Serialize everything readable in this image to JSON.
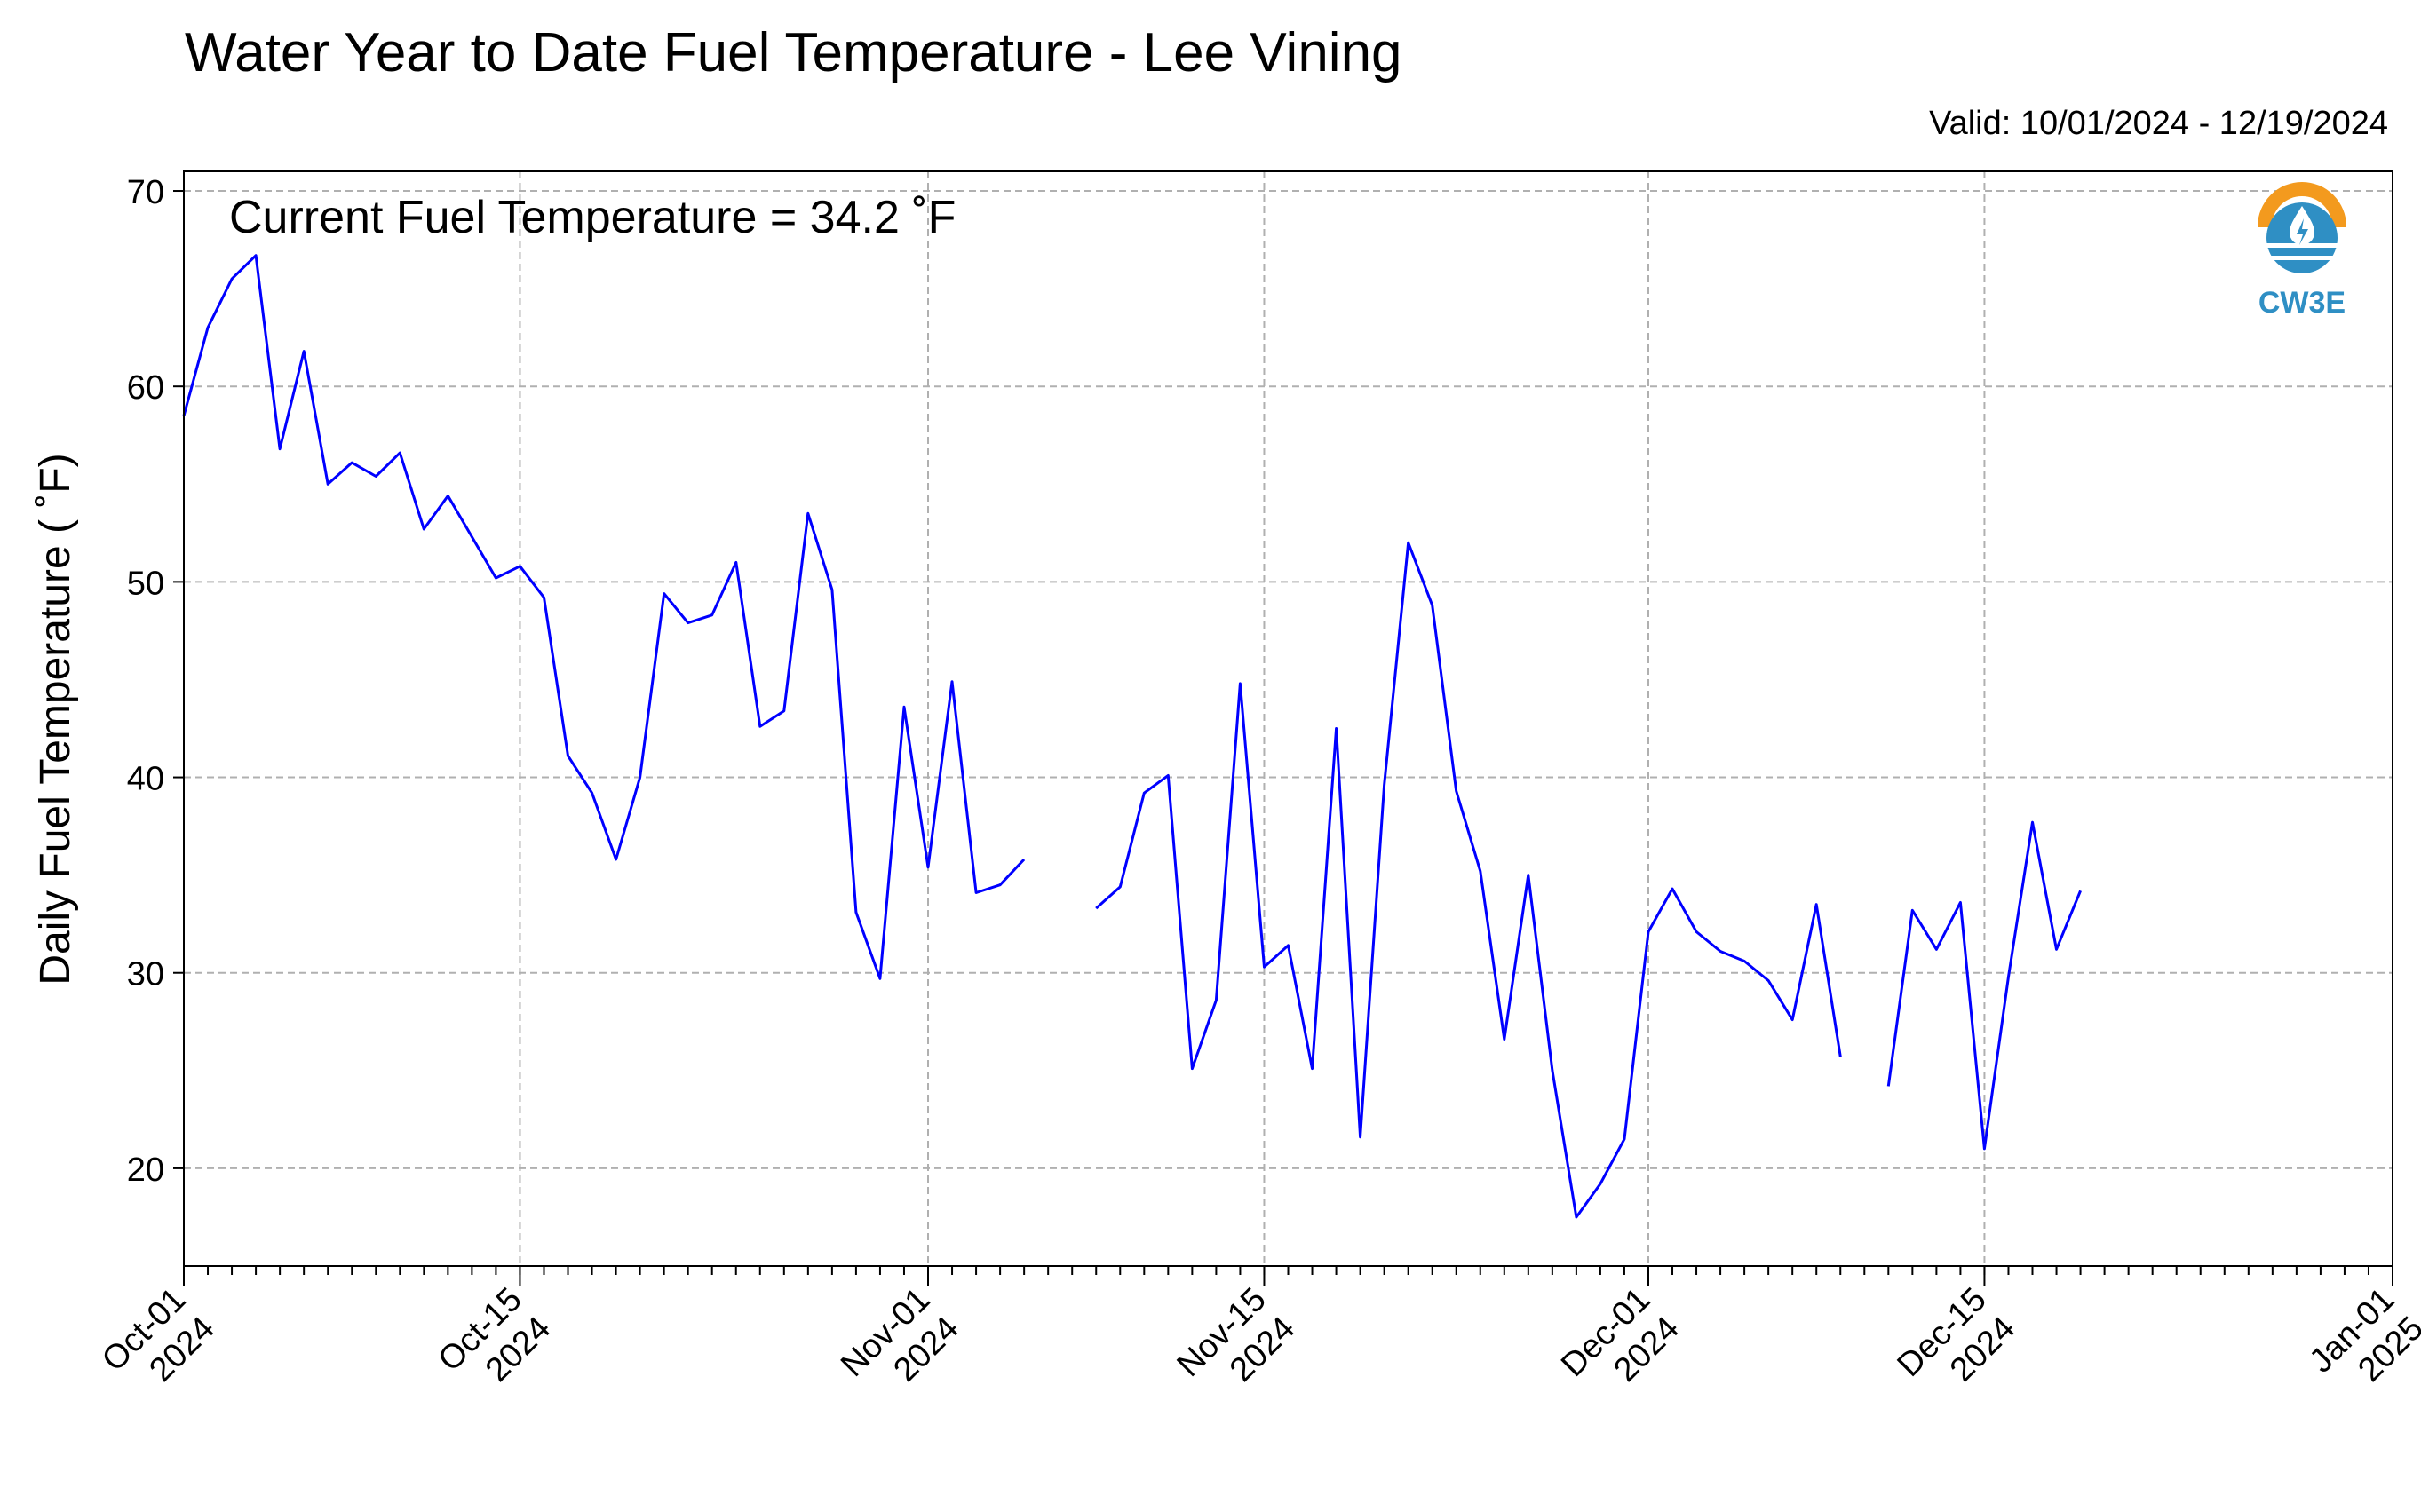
{
  "title": "Water Year to Date Fuel Temperature - Lee Vining",
  "valid": "Valid: 10/01/2024 - 12/19/2024",
  "annotation": "Current Fuel Temperature = 34.2  ˚F",
  "logo": {
    "text": "CW3E",
    "icon": "cw3e-logo-icon",
    "orange": "#f39a1e",
    "blue": "#2f8fc4"
  },
  "chart_data": {
    "type": "line",
    "title": "Water Year to Date Fuel Temperature - Lee Vining",
    "xlabel": "",
    "ylabel": "Daily Fuel Temperature ( ˚F)",
    "xlim": [
      "2024-10-01",
      "2025-01-01"
    ],
    "ylim": [
      15,
      71
    ],
    "yticks": [
      20,
      30,
      40,
      50,
      60,
      70
    ],
    "xticks": [
      {
        "date": "2024-10-01",
        "label": [
          "Oct-01",
          "2024"
        ]
      },
      {
        "date": "2024-10-15",
        "label": [
          "Oct-15",
          "2024"
        ]
      },
      {
        "date": "2024-11-01",
        "label": [
          "Nov-01",
          "2024"
        ]
      },
      {
        "date": "2024-11-15",
        "label": [
          "Nov-15",
          "2024"
        ]
      },
      {
        "date": "2024-12-01",
        "label": [
          "Dec-01",
          "2024"
        ]
      },
      {
        "date": "2024-12-15",
        "label": [
          "Dec-15",
          "2024"
        ]
      },
      {
        "date": "2025-01-01",
        "label": [
          "Jan-01",
          "2025"
        ]
      }
    ],
    "grid": true,
    "line_color": "#0000ff",
    "series": [
      {
        "x": [
          "2024-10-01",
          "2024-10-02",
          "2024-10-03",
          "2024-10-04",
          "2024-10-05",
          "2024-10-06",
          "2024-10-07",
          "2024-10-08",
          "2024-10-09",
          "2024-10-10",
          "2024-10-11",
          "2024-10-12",
          "2024-10-13",
          "2024-10-14",
          "2024-10-15",
          "2024-10-16",
          "2024-10-17",
          "2024-10-18",
          "2024-10-19",
          "2024-10-20",
          "2024-10-21",
          "2024-10-22",
          "2024-10-23",
          "2024-10-24",
          "2024-10-25",
          "2024-10-26",
          "2024-10-27",
          "2024-10-28",
          "2024-10-29",
          "2024-10-30",
          "2024-10-31",
          "2024-11-01",
          "2024-11-02",
          "2024-11-03",
          "2024-11-04",
          "2024-11-05",
          "2024-11-06",
          "2024-11-07",
          "2024-11-08",
          "2024-11-09",
          "2024-11-10",
          "2024-11-11",
          "2024-11-12",
          "2024-11-13",
          "2024-11-14",
          "2024-11-15",
          "2024-11-16",
          "2024-11-17",
          "2024-11-18",
          "2024-11-19",
          "2024-11-20",
          "2024-11-21",
          "2024-11-22",
          "2024-11-23",
          "2024-11-24",
          "2024-11-25",
          "2024-11-26",
          "2024-11-27",
          "2024-11-28",
          "2024-11-29",
          "2024-11-30",
          "2024-12-01",
          "2024-12-02",
          "2024-12-03",
          "2024-12-04",
          "2024-12-05",
          "2024-12-06",
          "2024-12-07",
          "2024-12-08",
          "2024-12-09",
          "2024-12-10",
          "2024-12-11",
          "2024-12-12",
          "2024-12-13",
          "2024-12-14",
          "2024-12-15",
          "2024-12-16",
          "2024-12-17",
          "2024-12-18",
          "2024-12-19"
        ],
        "y": [
          58.5,
          63.0,
          65.5,
          66.7,
          56.8,
          61.8,
          55.0,
          56.1,
          55.4,
          56.6,
          52.7,
          54.4,
          52.3,
          50.2,
          50.8,
          49.2,
          41.1,
          39.2,
          35.8,
          40.0,
          49.4,
          47.9,
          48.3,
          51.0,
          42.6,
          43.4,
          53.5,
          49.6,
          33.1,
          29.7,
          43.6,
          35.4,
          44.9,
          34.1,
          34.5,
          35.8,
          null,
          null,
          33.3,
          34.4,
          39.2,
          40.1,
          25.1,
          28.6,
          44.8,
          30.3,
          31.4,
          25.1,
          42.5,
          21.6,
          39.6,
          52.0,
          48.8,
          39.3,
          35.2,
          26.6,
          35.0,
          25.0,
          17.5,
          19.2,
          21.5,
          32.1,
          34.3,
          32.1,
          31.1,
          30.6,
          29.6,
          27.6,
          33.5,
          25.7,
          null,
          24.2,
          33.2,
          31.2,
          33.6,
          21.0,
          29.8,
          37.7,
          31.2,
          34.2
        ]
      }
    ]
  }
}
